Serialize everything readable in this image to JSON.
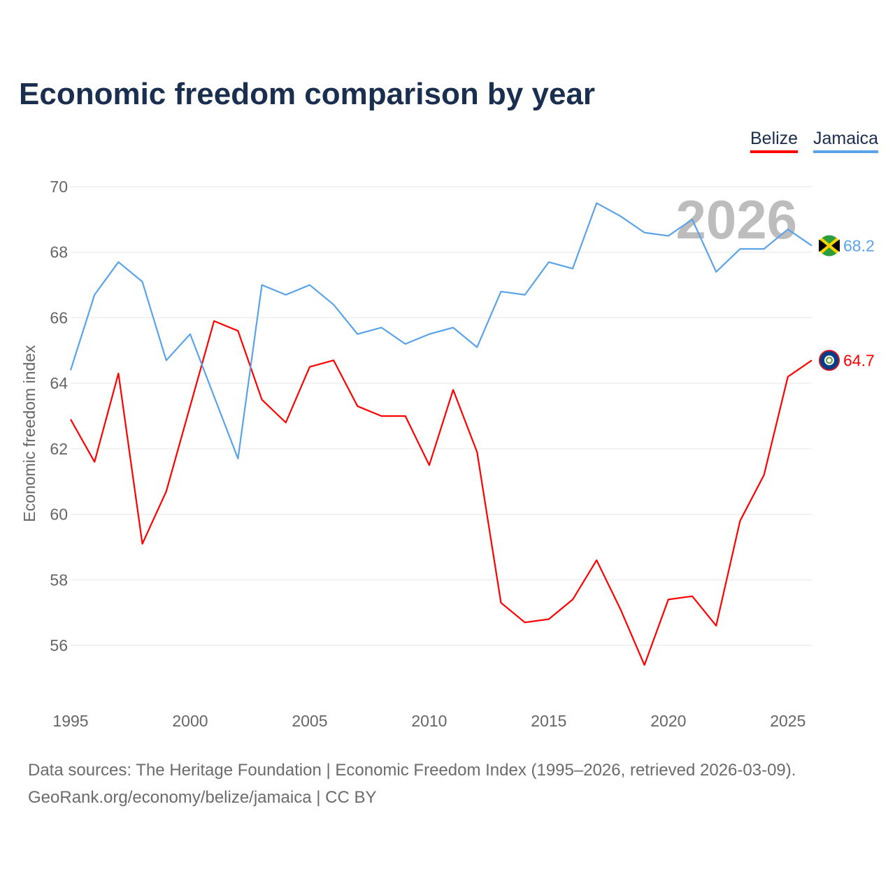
{
  "chart_data": {
    "type": "line",
    "title": "Economic freedom comparison by year",
    "xlabel": "",
    "ylabel": "Economic freedom index",
    "ylim": [
      54.5,
      70
    ],
    "xlim": [
      1995,
      2026
    ],
    "yticks": [
      56,
      58,
      60,
      62,
      64,
      66,
      68,
      70
    ],
    "xticks": [
      1995,
      2000,
      2005,
      2010,
      2015,
      2020,
      2025
    ],
    "grid": true,
    "legend_position": "top-right",
    "watermark_year": "2026",
    "x": [
      1995,
      1996,
      1997,
      1998,
      1999,
      2000,
      2001,
      2002,
      2003,
      2004,
      2005,
      2006,
      2007,
      2008,
      2009,
      2010,
      2011,
      2012,
      2013,
      2014,
      2015,
      2016,
      2017,
      2018,
      2019,
      2020,
      2021,
      2022,
      2023,
      2024,
      2025,
      2026
    ],
    "series": [
      {
        "name": "Belize",
        "color": "#ff0000",
        "end_label": "64.7",
        "flag": "belize-flag",
        "values": [
          62.9,
          61.6,
          64.3,
          59.1,
          60.7,
          63.3,
          65.9,
          65.6,
          63.5,
          62.8,
          64.5,
          64.7,
          63.3,
          63.0,
          63.0,
          61.5,
          63.8,
          61.9,
          57.3,
          56.7,
          56.8,
          57.4,
          58.6,
          57.1,
          55.4,
          57.4,
          57.5,
          56.6,
          59.8,
          61.2,
          64.2,
          64.7
        ]
      },
      {
        "name": "Jamaica",
        "color": "#5aa3e8",
        "end_label": "68.2",
        "flag": "jamaica-flag",
        "values": [
          64.4,
          66.7,
          67.7,
          67.1,
          64.7,
          65.5,
          63.6,
          61.7,
          67.0,
          66.7,
          67.0,
          66.4,
          65.5,
          65.7,
          65.2,
          65.5,
          65.7,
          65.1,
          66.8,
          66.7,
          67.7,
          67.5,
          69.5,
          69.1,
          68.6,
          68.5,
          69.0,
          67.4,
          68.1,
          68.1,
          68.7,
          68.2
        ]
      }
    ]
  },
  "source": {
    "line1": "Data sources: The Heritage Foundation | Economic Freedom Index (1995–2026, retrieved 2026-03-09).",
    "line2": "GeoRank.org/economy/belize/jamaica | CC BY"
  }
}
